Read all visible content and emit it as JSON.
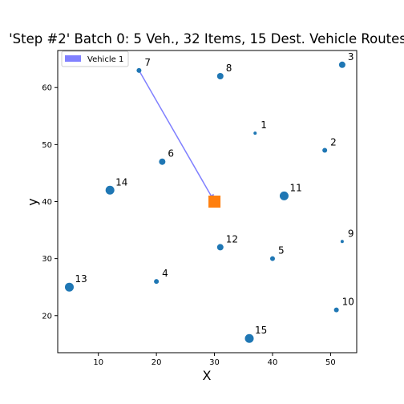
{
  "chart_data": {
    "type": "scatter",
    "title": "'Step #2' Batch 0: 5 Veh., 32 Items, 15 Dest. Vehicle Routes",
    "xlabel": "X",
    "ylabel": "y",
    "xlim": [
      3,
      54.5
    ],
    "ylim": [
      13.5,
      66.5
    ],
    "xticks": [
      10,
      20,
      30,
      40,
      50
    ],
    "yticks": [
      20,
      30,
      40,
      50,
      60
    ],
    "grid": false,
    "point_color": "#1f77b4",
    "depot_color": "#ff7f0e",
    "route_color": "#8080ff",
    "depot": {
      "x": 30,
      "y": 40
    },
    "points": [
      {
        "label": "1",
        "x": 37,
        "y": 52,
        "size": 1
      },
      {
        "label": "2",
        "x": 49,
        "y": 49,
        "size": 2
      },
      {
        "label": "3",
        "x": 52,
        "y": 64,
        "size": 3
      },
      {
        "label": "4",
        "x": 20,
        "y": 26,
        "size": 2
      },
      {
        "label": "5",
        "x": 40,
        "y": 30,
        "size": 2
      },
      {
        "label": "6",
        "x": 21,
        "y": 47,
        "size": 3
      },
      {
        "label": "7",
        "x": 17,
        "y": 63,
        "size": 2
      },
      {
        "label": "8",
        "x": 31,
        "y": 62,
        "size": 3
      },
      {
        "label": "9",
        "x": 52,
        "y": 33,
        "size": 1
      },
      {
        "label": "10",
        "x": 51,
        "y": 21,
        "size": 2
      },
      {
        "label": "11",
        "x": 42,
        "y": 41,
        "size": 4
      },
      {
        "label": "12",
        "x": 31,
        "y": 32,
        "size": 3
      },
      {
        "label": "13",
        "x": 5,
        "y": 25,
        "size": 4
      },
      {
        "label": "14",
        "x": 12,
        "y": 42,
        "size": 4
      },
      {
        "label": "15",
        "x": 36,
        "y": 16,
        "size": 4
      }
    ],
    "routes": [
      {
        "name": "Vehicle 1",
        "path": [
          [
            17,
            63
          ],
          [
            30,
            40
          ]
        ]
      }
    ],
    "legend": {
      "position": "top-left",
      "entries": [
        "Vehicle 1"
      ]
    }
  }
}
